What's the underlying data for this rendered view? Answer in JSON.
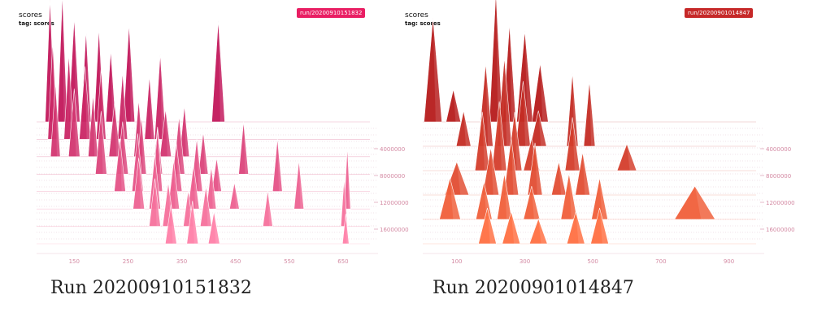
{
  "panels": [
    {
      "title": "scores",
      "tag": "tag: scores",
      "run_badge": "run/20200910151832",
      "caption": "Run 20200910151832",
      "colors": {
        "back": "#c2185b",
        "front": "#ff80a8",
        "badge": "#e91e63"
      },
      "chart_data": {
        "type": "histogram",
        "subtype": "offset",
        "title": "scores",
        "x_ticks": [
          150,
          250,
          350,
          450,
          550,
          650
        ],
        "x_range": [
          80,
          700
        ],
        "y_ticks": [
          "4000000",
          "8000000",
          "12000000",
          "16000000"
        ],
        "series": [
          {
            "step": 0,
            "peaks": [
              {
                "x": 105,
                "h": 0.95,
                "w": 12
              },
              {
                "x": 128,
                "h": 0.98,
                "w": 12
              },
              {
                "x": 150,
                "h": 0.8,
                "w": 14
              },
              {
                "x": 172,
                "h": 0.7,
                "w": 12
              },
              {
                "x": 196,
                "h": 0.72,
                "w": 12
              },
              {
                "x": 218,
                "h": 0.55,
                "w": 12
              },
              {
                "x": 252,
                "h": 0.75,
                "w": 14
              },
              {
                "x": 418,
                "h": 0.78,
                "w": 16
              }
            ]
          },
          {
            "step": 1,
            "peaks": [
              {
                "x": 110,
                "h": 0.8,
                "w": 12
              },
              {
                "x": 140,
                "h": 0.7,
                "w": 12
              },
              {
                "x": 170,
                "h": 0.6,
                "w": 14
              },
              {
                "x": 200,
                "h": 0.58,
                "w": 12
              },
              {
                "x": 240,
                "h": 0.55,
                "w": 12
              },
              {
                "x": 290,
                "h": 0.52,
                "w": 12
              },
              {
                "x": 310,
                "h": 0.7,
                "w": 14
              }
            ]
          },
          {
            "step": 2,
            "peaks": [
              {
                "x": 115,
                "h": 0.65,
                "w": 12
              },
              {
                "x": 150,
                "h": 0.6,
                "w": 14
              },
              {
                "x": 185,
                "h": 0.55,
                "w": 12
              },
              {
                "x": 225,
                "h": 0.48,
                "w": 14
              },
              {
                "x": 270,
                "h": 0.5,
                "w": 12
              },
              {
                "x": 320,
                "h": 0.42,
                "w": 14
              },
              {
                "x": 355,
                "h": 0.45,
                "w": 12
              }
            ]
          },
          {
            "step": 3,
            "peaks": [
              {
                "x": 200,
                "h": 0.6,
                "w": 14
              },
              {
                "x": 240,
                "h": 0.5,
                "w": 14
              },
              {
                "x": 275,
                "h": 0.55,
                "w": 12
              },
              {
                "x": 305,
                "h": 0.45,
                "w": 12
              },
              {
                "x": 345,
                "h": 0.55,
                "w": 14
              },
              {
                "x": 390,
                "h": 0.4,
                "w": 12
              },
              {
                "x": 465,
                "h": 0.5,
                "w": 12
              }
            ]
          },
          {
            "step": 4,
            "peaks": [
              {
                "x": 235,
                "h": 0.55,
                "w": 14
              },
              {
                "x": 268,
                "h": 0.6,
                "w": 14
              },
              {
                "x": 305,
                "h": 0.65,
                "w": 12
              },
              {
                "x": 340,
                "h": 0.5,
                "w": 14
              },
              {
                "x": 378,
                "h": 0.55,
                "w": 14
              },
              {
                "x": 415,
                "h": 0.35,
                "w": 12
              },
              {
                "x": 528,
                "h": 0.55,
                "w": 12
              }
            ]
          },
          {
            "step": 5,
            "peaks": [
              {
                "x": 270,
                "h": 0.58,
                "w": 14
              },
              {
                "x": 300,
                "h": 0.62,
                "w": 14
              },
              {
                "x": 335,
                "h": 0.55,
                "w": 14
              },
              {
                "x": 372,
                "h": 0.5,
                "w": 14
              },
              {
                "x": 405,
                "h": 0.48,
                "w": 12
              },
              {
                "x": 448,
                "h": 0.3,
                "w": 12
              },
              {
                "x": 568,
                "h": 0.55,
                "w": 12
              },
              {
                "x": 658,
                "h": 0.7,
                "w": 8
              }
            ]
          },
          {
            "step": 6,
            "peaks": [
              {
                "x": 300,
                "h": 0.6,
                "w": 14
              },
              {
                "x": 325,
                "h": 0.55,
                "w": 14
              },
              {
                "x": 362,
                "h": 0.45,
                "w": 12
              },
              {
                "x": 395,
                "h": 0.5,
                "w": 14
              },
              {
                "x": 510,
                "h": 0.45,
                "w": 12
              },
              {
                "x": 652,
                "h": 0.6,
                "w": 8
              }
            ]
          },
          {
            "step": 7,
            "peaks": [
              {
                "x": 330,
                "h": 0.55,
                "w": 14
              },
              {
                "x": 370,
                "h": 0.6,
                "w": 14
              },
              {
                "x": 410,
                "h": 0.45,
                "w": 14
              },
              {
                "x": 655,
                "h": 0.42,
                "w": 8
              }
            ]
          }
        ]
      }
    },
    {
      "title": "scores",
      "tag": "tag: scores",
      "run_badge": "run/20200901014847",
      "caption": "Run 20200901014847",
      "colors": {
        "back": "#b71c1c",
        "front": "#ff7043",
        "badge": "#c62828"
      },
      "chart_data": {
        "type": "histogram",
        "subtype": "offset",
        "title": "scores",
        "x_ticks": [
          100,
          300,
          500,
          700,
          900
        ],
        "x_range": [
          0,
          980
        ],
        "y_ticks": [
          "4000000",
          "8000000",
          "12000000",
          "16000000"
        ],
        "series": [
          {
            "step": 0,
            "peaks": [
              {
                "x": 30,
                "h": 0.8,
                "w": 22
              },
              {
                "x": 90,
                "h": 0.25,
                "w": 18
              },
              {
                "x": 215,
                "h": 1.0,
                "w": 16
              },
              {
                "x": 255,
                "h": 0.75,
                "w": 16
              },
              {
                "x": 300,
                "h": 0.7,
                "w": 20
              },
              {
                "x": 345,
                "h": 0.45,
                "w": 20
              }
            ]
          },
          {
            "step": 1,
            "peaks": [
              {
                "x": 120,
                "h": 0.3,
                "w": 18
              },
              {
                "x": 185,
                "h": 0.7,
                "w": 18
              },
              {
                "x": 240,
                "h": 0.75,
                "w": 18
              },
              {
                "x": 295,
                "h": 0.55,
                "w": 18
              },
              {
                "x": 340,
                "h": 0.3,
                "w": 20
              },
              {
                "x": 440,
                "h": 0.62,
                "w": 14
              },
              {
                "x": 490,
                "h": 0.55,
                "w": 14
              }
            ]
          },
          {
            "step": 2,
            "peaks": [
              {
                "x": 175,
                "h": 0.55,
                "w": 18
              },
              {
                "x": 225,
                "h": 0.65,
                "w": 18
              },
              {
                "x": 270,
                "h": 0.55,
                "w": 18
              },
              {
                "x": 320,
                "h": 0.3,
                "w": 20
              },
              {
                "x": 440,
                "h": 0.5,
                "w": 18
              },
              {
                "x": 600,
                "h": 0.25,
                "w": 24
              }
            ]
          },
          {
            "step": 3,
            "peaks": [
              {
                "x": 100,
                "h": 0.35,
                "w": 30
              },
              {
                "x": 200,
                "h": 0.5,
                "w": 20
              },
              {
                "x": 260,
                "h": 0.6,
                "w": 18
              },
              {
                "x": 330,
                "h": 0.55,
                "w": 18
              },
              {
                "x": 400,
                "h": 0.35,
                "w": 18
              },
              {
                "x": 470,
                "h": 0.45,
                "w": 18
              }
            ]
          },
          {
            "step": 4,
            "peaks": [
              {
                "x": 80,
                "h": 0.5,
                "w": 26
              },
              {
                "x": 180,
                "h": 0.45,
                "w": 20
              },
              {
                "x": 240,
                "h": 0.55,
                "w": 18
              },
              {
                "x": 320,
                "h": 0.4,
                "w": 20
              },
              {
                "x": 430,
                "h": 0.55,
                "w": 20
              },
              {
                "x": 520,
                "h": 0.5,
                "w": 20
              },
              {
                "x": 800,
                "h": 0.4,
                "w": 50
              }
            ]
          },
          {
            "step": 5,
            "peaks": [
              {
                "x": 190,
                "h": 0.5,
                "w": 22
              },
              {
                "x": 260,
                "h": 0.45,
                "w": 22
              },
              {
                "x": 340,
                "h": 0.35,
                "w": 22
              },
              {
                "x": 450,
                "h": 0.45,
                "w": 22
              },
              {
                "x": 520,
                "h": 0.5,
                "w": 22
              }
            ]
          }
        ]
      }
    }
  ]
}
